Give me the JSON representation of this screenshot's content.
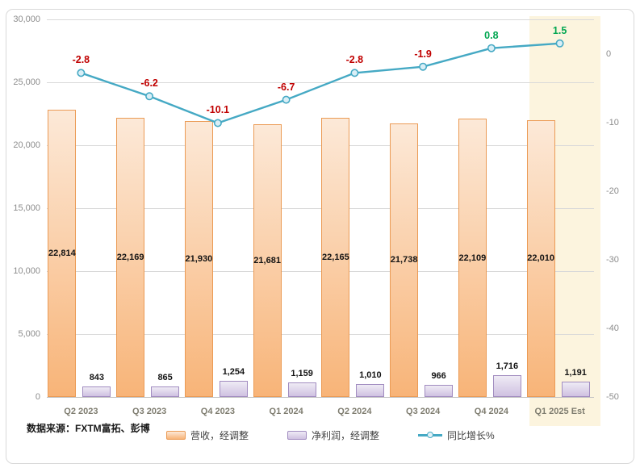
{
  "source_note": "数据来源：FXTM富拓、彭博",
  "legend": [
    {
      "label": "营收，经调整",
      "type": "bar-swatch",
      "series": "revenue"
    },
    {
      "label": "净利润，经调整",
      "type": "bar-swatch",
      "series": "net_profit"
    },
    {
      "label": "同比增长%",
      "type": "line-swatch",
      "series": "yoy_growth"
    }
  ],
  "colors": {
    "revenue_fill": "#F8B478",
    "revenue_fill_light": "#FCE9D8",
    "revenue_border": "#EB9B55",
    "profit_fill": "#CFC1E1",
    "profit_fill_light": "#EFEBF5",
    "profit_border": "#A18CC0",
    "line": "#45A9C4",
    "marker_fill": "#D9EEF6",
    "negative_label": "#C00000",
    "positive_label": "#00A650",
    "highlight_band": "#FCF4DE",
    "gridline": "#D9D9D9",
    "axis_line": "#C2C2C2"
  },
  "chart_data": {
    "type": "combo-bar-line",
    "categories": [
      "Q2 2023",
      "Q3 2023",
      "Q4 2023",
      "Q1 2024",
      "Q2 2024",
      "Q3 2024",
      "Q4 2024",
      "Q1 2025 Est"
    ],
    "series": [
      {
        "name": "营收，经调整",
        "type": "bar",
        "axis": "left",
        "values": [
          22814,
          22169,
          21930,
          21681,
          22165,
          21738,
          22109,
          22010
        ],
        "labels": [
          "22,814",
          "22,169",
          "21,930",
          "21,681",
          "22,165",
          "21,738",
          "22,109",
          "22,010"
        ]
      },
      {
        "name": "净利润，经调整",
        "type": "bar",
        "axis": "left",
        "values": [
          843,
          865,
          1254,
          1159,
          1010,
          966,
          1716,
          1191
        ],
        "labels": [
          "843",
          "865",
          "1,254",
          "1,159",
          "1,010",
          "966",
          "1,716",
          "1,191"
        ]
      },
      {
        "name": "同比增长%",
        "type": "line",
        "axis": "right",
        "values": [
          -2.8,
          -6.2,
          -10.1,
          -6.7,
          -2.8,
          -1.9,
          0.8,
          1.5
        ],
        "labels": [
          "-2.8",
          "-6.2",
          "-10.1",
          "-6.7",
          "-2.8",
          "-1.9",
          "0.8",
          "1.5"
        ]
      }
    ],
    "left_axis": {
      "min": 0,
      "max": 30000,
      "step": 5000,
      "ticks": [
        0,
        5000,
        10000,
        15000,
        20000,
        25000,
        30000
      ],
      "tick_labels": [
        "0",
        "5,000",
        "10,000",
        "15,000",
        "20,000",
        "25,000",
        "30,000"
      ]
    },
    "right_axis": {
      "min": -50,
      "max": 5,
      "ticks": [
        0,
        -10,
        -20,
        -30,
        -40,
        -50
      ],
      "tick_labels": [
        "0",
        "-10",
        "-20",
        "-30",
        "-40",
        "-50"
      ]
    },
    "highlight_category": "Q1 2025 Est",
    "grid": true,
    "legend_position": "bottom",
    "title": ""
  }
}
